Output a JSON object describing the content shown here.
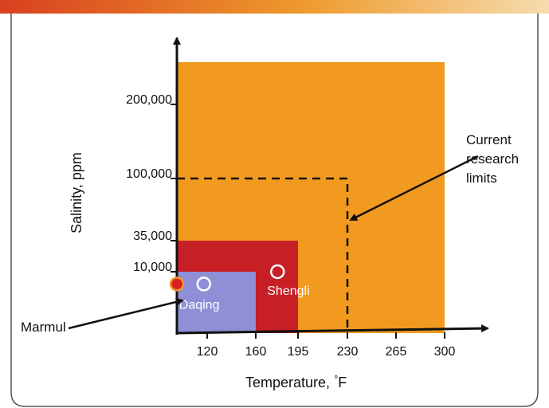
{
  "header": {
    "text": ""
  },
  "chart_data": {
    "type": "area",
    "title": "",
    "xlabel": "Temperature, ",
    "xlabel_unit": "°F",
    "ylabel": "Salinity, ppm",
    "x_ticks": [
      "120",
      "160",
      "195",
      "230",
      "265",
      "300"
    ],
    "x_tick_values": [
      120,
      160,
      195,
      230,
      265,
      300
    ],
    "y_ticks": [
      "10,000",
      "35,000",
      "100,000",
      "200,000"
    ],
    "y_tick_values": [
      10000,
      35000,
      100000,
      200000
    ],
    "regions": [
      {
        "name": "",
        "x_max": 300,
        "y_max": 250000,
        "color": "#f29a1f"
      },
      {
        "name": "",
        "x_max": 195,
        "y_max": 35000,
        "color": "#c61f26"
      },
      {
        "name": "",
        "x_max": 160,
        "y_max": 10000,
        "color": "#8e8fd6"
      }
    ],
    "research_limits": {
      "x": 230,
      "y": 100000
    },
    "points": [
      {
        "name": "Marmul",
        "x": 102,
        "y": 8000,
        "fill": "#d92020",
        "stroke": "#f29a1f"
      },
      {
        "name": "Daqing",
        "x": 118,
        "y": 8000,
        "fill": "none",
        "stroke": "#ffffff"
      },
      {
        "name": "Shengli",
        "x": 178,
        "y": 10000,
        "fill": "none",
        "stroke": "#ffffff"
      }
    ],
    "annotations": {
      "current_research_limits": [
        "Current",
        "research",
        "limits"
      ],
      "marmul": "Marmul"
    },
    "colors": {
      "header": "#d8401f",
      "header_end": "#f3c98a",
      "axis": "#111111"
    }
  }
}
